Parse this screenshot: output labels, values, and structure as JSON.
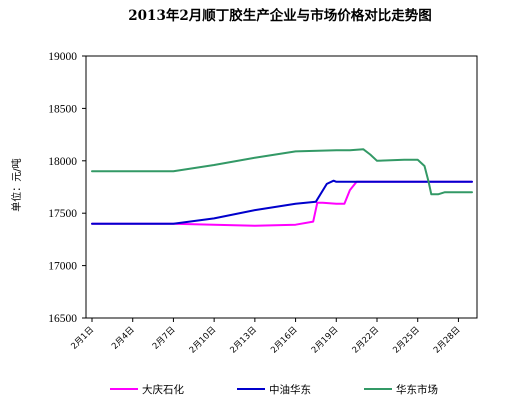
{
  "chart_data": {
    "type": "line",
    "title": "2013年2月顺丁胶生产企业与市场价格对比走势图",
    "ylabel": "单位：元/吨",
    "xlabel": "",
    "ylim": [
      16500,
      19000
    ],
    "yticks": [
      "16500",
      "17000",
      "17500",
      "18000",
      "18500",
      "19000"
    ],
    "ytick_values": [
      16500,
      17000,
      17500,
      18000,
      18500,
      19000
    ],
    "x_days": [
      1,
      29
    ],
    "xtick_labels": [
      "2月1日",
      "2月4日",
      "2月7日",
      "2月10日",
      "2月13日",
      "2月16日",
      "2月19日",
      "2月22日",
      "2月25日",
      "2月28日"
    ],
    "xtick_days": [
      1,
      4,
      7,
      10,
      13,
      16,
      19,
      22,
      25,
      28
    ],
    "grid": false,
    "legend_position": "bottom",
    "series": [
      {
        "name": "大庆石化",
        "color": "#ff00ff",
        "x": [
          1,
          7,
          10,
          13,
          16,
          17.3,
          17.6,
          18,
          19,
          19.6,
          20,
          20.5,
          21,
          22,
          25,
          28,
          29
        ],
        "values": [
          17400,
          17400,
          17390,
          17380,
          17390,
          17420,
          17600,
          17600,
          17590,
          17590,
          17720,
          17800,
          17800,
          17800,
          17800,
          17800,
          17800
        ]
      },
      {
        "name": "中油华东",
        "color": "#0000cc",
        "x": [
          1,
          7,
          10,
          13,
          16,
          17.5,
          18.3,
          18.8,
          19,
          22,
          25,
          28,
          29
        ],
        "values": [
          17400,
          17400,
          17450,
          17530,
          17590,
          17610,
          17780,
          17810,
          17800,
          17800,
          17800,
          17800,
          17800
        ]
      },
      {
        "name": "华东市场",
        "color": "#339966",
        "x": [
          1,
          7,
          10,
          13,
          16,
          19,
          20,
          21,
          21.5,
          22,
          24,
          25,
          25.5,
          25.8,
          26,
          26.5,
          27,
          28,
          29
        ],
        "values": [
          17900,
          17900,
          17960,
          18030,
          18090,
          18100,
          18100,
          18110,
          18060,
          18000,
          18010,
          18010,
          17950,
          17800,
          17680,
          17680,
          17700,
          17700,
          17700
        ]
      }
    ]
  }
}
